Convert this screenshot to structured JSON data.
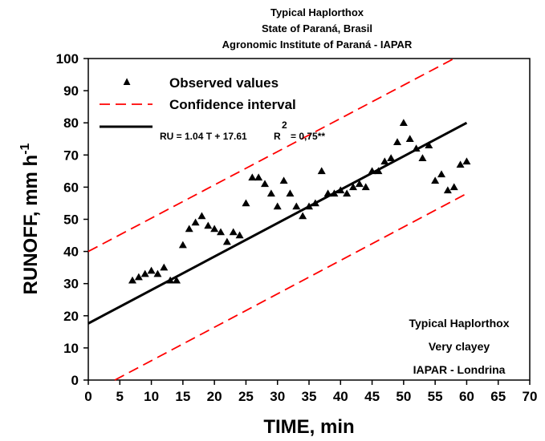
{
  "chart_data": {
    "type": "scatter",
    "title_lines": [
      "Typical Haplorthox",
      "State of Paraná, Brasil",
      "Agronomic Institute of Paraná - IAPAR"
    ],
    "xlabel": "TIME, min",
    "ylabel_main": "RUNOFF, mm h",
    "ylabel_sup": "-1",
    "xlim": [
      0,
      70
    ],
    "ylim": [
      0,
      100
    ],
    "x_ticks": [
      "0",
      "5",
      "10",
      "15",
      "20",
      "25",
      "30",
      "35",
      "40",
      "45",
      "50",
      "55",
      "60",
      "65",
      "70"
    ],
    "y_ticks": [
      "0",
      "10",
      "20",
      "30",
      "40",
      "50",
      "60",
      "70",
      "80",
      "90",
      "100"
    ],
    "series": [
      {
        "name": "Observed values",
        "marker": "triangle",
        "color": "#000000",
        "points": [
          [
            7,
            31
          ],
          [
            8,
            32
          ],
          [
            9,
            33
          ],
          [
            10,
            34
          ],
          [
            11,
            33
          ],
          [
            12,
            35
          ],
          [
            13,
            31
          ],
          [
            14,
            31
          ],
          [
            15,
            42
          ],
          [
            16,
            47
          ],
          [
            17,
            49
          ],
          [
            18,
            51
          ],
          [
            19,
            48
          ],
          [
            20,
            47
          ],
          [
            21,
            46
          ],
          [
            22,
            43
          ],
          [
            23,
            46
          ],
          [
            24,
            45
          ],
          [
            25,
            55
          ],
          [
            26,
            63
          ],
          [
            27,
            63
          ],
          [
            28,
            61
          ],
          [
            29,
            58
          ],
          [
            30,
            54
          ],
          [
            31,
            62
          ],
          [
            32,
            58
          ],
          [
            33,
            54
          ],
          [
            34,
            51
          ],
          [
            35,
            54
          ],
          [
            36,
            55
          ],
          [
            37,
            65
          ],
          [
            38,
            58
          ],
          [
            39,
            58
          ],
          [
            40,
            59
          ],
          [
            41,
            58
          ],
          [
            42,
            60
          ],
          [
            43,
            61
          ],
          [
            44,
            60
          ],
          [
            45,
            65
          ],
          [
            46,
            65
          ],
          [
            47,
            68
          ],
          [
            48,
            69
          ],
          [
            49,
            74
          ],
          [
            50,
            80
          ],
          [
            51,
            75
          ],
          [
            52,
            72
          ],
          [
            53,
            69
          ],
          [
            54,
            73
          ],
          [
            55,
            62
          ],
          [
            56,
            64
          ],
          [
            57,
            59
          ],
          [
            58,
            60
          ],
          [
            59,
            67
          ],
          [
            60,
            68
          ]
        ]
      },
      {
        "name": "Confidence interval",
        "style": "dashed",
        "color": "#ff0000",
        "upper": [
          [
            0,
            40
          ],
          [
            58,
            100
          ]
        ],
        "lower": [
          [
            4.2,
            0
          ],
          [
            60,
            58
          ]
        ]
      },
      {
        "name": "RU = 1.04 T + 17.61",
        "style": "solid",
        "color": "#000000",
        "line": [
          [
            0,
            17.61
          ],
          [
            60,
            80
          ]
        ]
      }
    ],
    "legend": {
      "position": "top-left",
      "observed_label": "Observed values",
      "ci_label": "Confidence interval",
      "equation": "RU = 1.04 T + 17.61",
      "r2_label": "R",
      "r2_sup": "2",
      "r2_value": "= 0,75**"
    },
    "annotations": [
      "Typical Haplorthox",
      "Very clayey",
      "IAPAR - Londrina"
    ],
    "grid": false
  }
}
